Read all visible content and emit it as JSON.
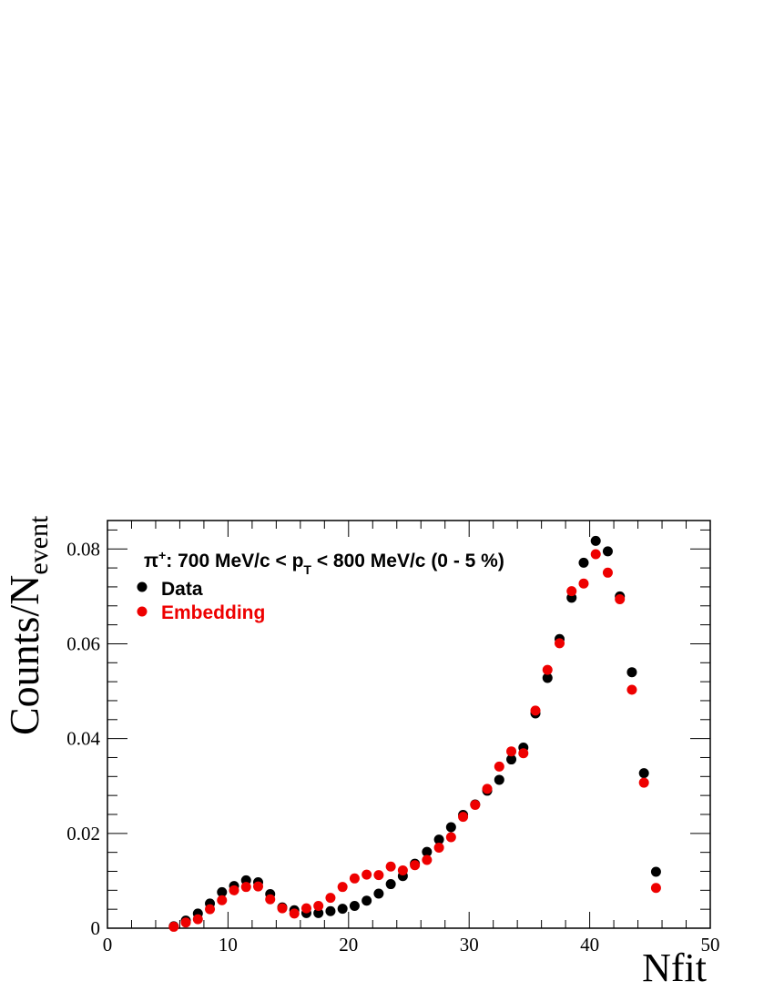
{
  "chart_data": {
    "type": "scatter",
    "annotation": {
      "prefix": "π",
      "sup": "+",
      "middle": ": 700 MeV/c < p",
      "sub": "T",
      "suffix": " < 800 MeV/c (0 - 5 %)"
    },
    "xlabel": "Nfit",
    "ylabel": {
      "main": "Counts/N",
      "sub": "event"
    },
    "xlim": [
      0,
      50
    ],
    "ylim": [
      0,
      0.086
    ],
    "x_ticks": [
      0,
      10,
      20,
      30,
      40,
      50
    ],
    "y_ticks": [
      {
        "value": 0,
        "label": "0"
      },
      {
        "value": 0.02,
        "label": "0.02"
      },
      {
        "value": 0.04,
        "label": "0.04"
      },
      {
        "value": 0.06,
        "label": "0.06"
      },
      {
        "value": 0.08,
        "label": "0.08"
      }
    ],
    "grid": false,
    "legend_position": "top-left",
    "series": [
      {
        "name": "Data",
        "color": "#000000",
        "x": [
          5.5,
          6.5,
          7.5,
          8.5,
          9.5,
          10.5,
          11.5,
          12.5,
          13.5,
          14.5,
          15.5,
          16.5,
          17.5,
          18.5,
          19.5,
          20.5,
          21.5,
          22.5,
          23.5,
          24.5,
          25.5,
          26.5,
          27.5,
          28.5,
          29.5,
          30.5,
          31.5,
          32.5,
          33.5,
          34.5,
          35.5,
          36.5,
          37.5,
          38.5,
          39.5,
          40.5,
          41.5,
          42.5,
          43.5,
          44.5,
          45.5
        ],
        "y": [
          0.0004,
          0.0016,
          0.0031,
          0.0052,
          0.0076,
          0.0089,
          0.0101,
          0.0097,
          0.0072,
          0.0044,
          0.0038,
          0.0032,
          0.0032,
          0.0036,
          0.0041,
          0.0047,
          0.0058,
          0.0073,
          0.0093,
          0.011,
          0.0136,
          0.0161,
          0.0187,
          0.0213,
          0.0239,
          0.0261,
          0.029,
          0.0313,
          0.0356,
          0.0381,
          0.0453,
          0.0528,
          0.061,
          0.0697,
          0.0771,
          0.0817,
          0.0795,
          0.07,
          0.054,
          0.0327,
          0.0119
        ]
      },
      {
        "name": "Embedding",
        "color": "#ee0000",
        "x": [
          5.5,
          6.5,
          7.5,
          8.5,
          9.5,
          10.5,
          11.5,
          12.5,
          13.5,
          14.5,
          15.5,
          16.5,
          17.5,
          18.5,
          19.5,
          20.5,
          21.5,
          22.5,
          23.5,
          24.5,
          25.5,
          26.5,
          27.5,
          28.5,
          29.5,
          30.5,
          31.5,
          32.5,
          33.5,
          34.5,
          35.5,
          36.5,
          37.5,
          38.5,
          39.5,
          40.5,
          41.5,
          42.5,
          43.5,
          44.5,
          45.5
        ],
        "y": [
          0.0003,
          0.0012,
          0.0019,
          0.004,
          0.0059,
          0.008,
          0.0087,
          0.0088,
          0.0061,
          0.0042,
          0.0031,
          0.0042,
          0.0047,
          0.0064,
          0.0087,
          0.0105,
          0.0113,
          0.0112,
          0.013,
          0.0122,
          0.0133,
          0.0144,
          0.017,
          0.0192,
          0.0235,
          0.026,
          0.0294,
          0.0341,
          0.0373,
          0.0369,
          0.0459,
          0.0545,
          0.0601,
          0.0711,
          0.0727,
          0.0789,
          0.075,
          0.0694,
          0.0503,
          0.0307,
          0.0085
        ]
      }
    ]
  }
}
